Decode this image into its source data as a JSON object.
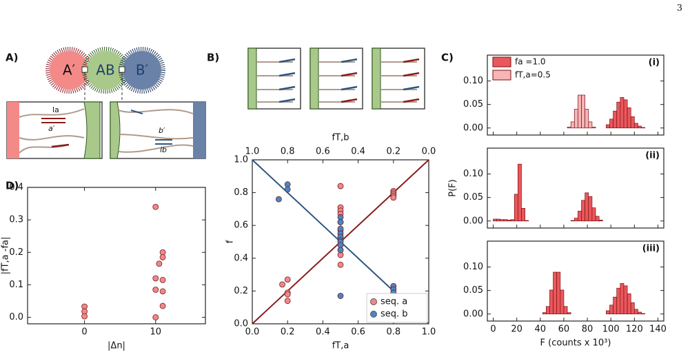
{
  "page_number": "3",
  "panel_labels": [
    "A)",
    "B)",
    "C)",
    "D)"
  ],
  "panel_a": {
    "circles": [
      "A′",
      "AB",
      "B′"
    ],
    "strand_labels": [
      "la",
      "a′",
      "b′",
      "lb"
    ]
  },
  "chart_data": [
    {
      "type": "scatter",
      "x_label": "fT,a",
      "x2_label": "fT,b",
      "y_label": "f",
      "xlim": [
        0,
        1
      ],
      "ylim": [
        0,
        1
      ],
      "x2lim": [
        1,
        0
      ],
      "xticks": [
        {
          "value": 0,
          "label": "0.0"
        },
        {
          "value": 0.2,
          "label": "0.2"
        },
        {
          "value": 0.4,
          "label": "0.4"
        },
        {
          "value": 0.6,
          "label": "0.6"
        },
        {
          "value": 0.8,
          "label": "0.8"
        },
        {
          "value": 1,
          "label": "1.0"
        }
      ],
      "x2ticks": [
        {
          "value": 1,
          "label": "1.0"
        },
        {
          "value": 0.8,
          "label": "0.8"
        },
        {
          "value": 0.6,
          "label": "0.6"
        },
        {
          "value": 0.4,
          "label": "0.4"
        },
        {
          "value": 0.2,
          "label": "0.2"
        },
        {
          "value": 0,
          "label": "0.0"
        }
      ],
      "yticks": [
        {
          "value": 0,
          "label": "0.0"
        },
        {
          "value": 0.2,
          "label": "0.2"
        },
        {
          "value": 0.4,
          "label": "0.4"
        },
        {
          "value": 0.6,
          "label": "0.6"
        },
        {
          "value": 0.8,
          "label": "0.8"
        },
        {
          "value": 1,
          "label": "1.0"
        }
      ],
      "fit_lines": [
        {
          "color": "#8b1a1a",
          "x": [
            0,
            1
          ],
          "y": [
            0,
            1
          ]
        },
        {
          "color": "#2b5580",
          "x": [
            0,
            1
          ],
          "y": [
            1,
            0
          ]
        }
      ],
      "legend": "lower right",
      "series": [
        {
          "name": "seq. a",
          "color": "#f4868a",
          "x": [
            0.17,
            0.2,
            0.2,
            0.2,
            0.2,
            0.5,
            0.5,
            0.5,
            0.5,
            0.5,
            0.5,
            0.5,
            0.5,
            0.5,
            0.5,
            0.8,
            0.8,
            0.8,
            0.8,
            0.8
          ],
          "values": [
            0.24,
            0.27,
            0.19,
            0.18,
            0.14,
            0.84,
            0.71,
            0.69,
            0.67,
            0.62,
            0.57,
            0.53,
            0.45,
            0.42,
            0.36,
            0.81,
            0.8,
            0.79,
            0.78,
            0.77
          ]
        },
        {
          "name": "seq. b",
          "color": "#4a86c5",
          "x": [
            0.15,
            0.2,
            0.2,
            0.5,
            0.5,
            0.5,
            0.5,
            0.5,
            0.5,
            0.5,
            0.5,
            0.5,
            0.5,
            0.8,
            0.8,
            0.8
          ],
          "values": [
            0.76,
            0.85,
            0.82,
            0.65,
            0.62,
            0.58,
            0.55,
            0.53,
            0.51,
            0.5,
            0.48,
            0.45,
            0.17,
            0.23,
            0.21,
            0.19
          ]
        }
      ]
    },
    {
      "type": "histogram",
      "title": "(i)",
      "xlim": [
        -5,
        145
      ],
      "ylim": [
        -0.015,
        0.155
      ],
      "yticks": [
        {
          "value": 0,
          "label": "0.00"
        },
        {
          "value": 0.05,
          "label": "0.05"
        },
        {
          "value": 0.1,
          "label": "0.10"
        }
      ],
      "legend": "upper left",
      "bins": [
        60,
        63,
        66,
        69,
        72,
        75,
        78,
        81,
        84,
        87,
        90,
        93,
        96,
        99,
        102,
        105,
        108,
        111,
        114,
        117,
        120,
        123,
        126,
        129
      ],
      "series": [
        {
          "name": "fa =1.0",
          "color": "#e9585c",
          "values": [
            0,
            0,
            0,
            0,
            0,
            0,
            0,
            0,
            0,
            0,
            0,
            0,
            0.007,
            0.019,
            0.036,
            0.055,
            0.065,
            0.06,
            0.043,
            0.024,
            0.01,
            0.004,
            0.001
          ]
        },
        {
          "name": "fT,a=0.5",
          "color": "#f6b5b7",
          "values": [
            0,
            0.002,
            0.013,
            0.04,
            0.07,
            0.07,
            0.04,
            0.013,
            0.002,
            0,
            0,
            0,
            0,
            0,
            0,
            0,
            0,
            0,
            0,
            0,
            0,
            0,
            0
          ]
        }
      ]
    },
    {
      "type": "histogram",
      "title": "(ii)",
      "y_label": "P(F)",
      "xlim": [
        -5,
        145
      ],
      "ylim": [
        -0.015,
        0.155
      ],
      "yticks": [
        {
          "value": 0,
          "label": "0.00"
        },
        {
          "value": 0.05,
          "label": "0.05"
        },
        {
          "value": 0.1,
          "label": "0.10"
        }
      ],
      "bins": [
        0,
        3,
        6,
        9,
        12,
        15,
        18,
        21,
        24,
        27,
        30,
        33,
        36,
        39,
        42,
        45,
        48,
        51,
        54,
        57,
        60,
        63,
        66,
        69,
        72,
        75,
        78,
        81,
        84,
        87,
        90,
        93,
        96
      ],
      "series": [
        {
          "color": "#e9585c",
          "values": [
            0.004,
            0.004,
            0.003,
            0.003,
            0.002,
            0.003,
            0.057,
            0.121,
            0.027,
            0.001,
            0,
            0,
            0,
            0,
            0,
            0,
            0,
            0,
            0,
            0,
            0,
            0,
            0.001,
            0.006,
            0.021,
            0.044,
            0.06,
            0.052,
            0.028,
            0.01,
            0.002,
            0
          ]
        }
      ]
    },
    {
      "type": "histogram",
      "title": "(iii)",
      "x_label": "F (counts x 10³)",
      "xlim": [
        -5,
        145
      ],
      "ylim": [
        -0.015,
        0.155
      ],
      "xticks": [
        0,
        20,
        40,
        60,
        80,
        100,
        120,
        140
      ],
      "yticks": [
        {
          "value": 0,
          "label": "0.00"
        },
        {
          "value": 0.05,
          "label": "0.05"
        },
        {
          "value": 0.1,
          "label": "0.10"
        }
      ],
      "bins": [
        39,
        42,
        45,
        48,
        51,
        54,
        57,
        60,
        63,
        66,
        69,
        72,
        75,
        78,
        81,
        84,
        87,
        90,
        93,
        96,
        99,
        102,
        105,
        108,
        111,
        114,
        117,
        120,
        123,
        126,
        129
      ],
      "series": [
        {
          "color": "#e9585c",
          "values": [
            0,
            0.003,
            0.016,
            0.051,
            0.089,
            0.089,
            0.051,
            0.016,
            0.003,
            0,
            0,
            0,
            0,
            0,
            0,
            0,
            0,
            0,
            0,
            0.007,
            0.019,
            0.036,
            0.055,
            0.065,
            0.06,
            0.043,
            0.024,
            0.01,
            0.004,
            0.001
          ]
        }
      ]
    },
    {
      "type": "scatter",
      "x_label": "|Δn|",
      "y_label": "|fT,a -fa|",
      "xlim": [
        -8,
        17
      ],
      "ylim": [
        -0.02,
        0.4
      ],
      "xticks": [
        0,
        10
      ],
      "yticks": [
        {
          "value": 0,
          "label": "0.0"
        },
        {
          "value": 0.1,
          "label": "0.1"
        },
        {
          "value": 0.2,
          "label": "0.2"
        },
        {
          "value": 0.3,
          "label": "0.3"
        },
        {
          "value": 0.4,
          "label": "0.4"
        }
      ],
      "series": [
        {
          "color": "#f4868a",
          "x": [
            0,
            0,
            0,
            10,
            11,
            11,
            10.5,
            10,
            11,
            10,
            11,
            11,
            10
          ],
          "values": [
            0.033,
            0.018,
            0.003,
            0.34,
            0.2,
            0.185,
            0.165,
            0.12,
            0.115,
            0.085,
            0.08,
            0.035,
            0
          ]
        }
      ]
    }
  ]
}
